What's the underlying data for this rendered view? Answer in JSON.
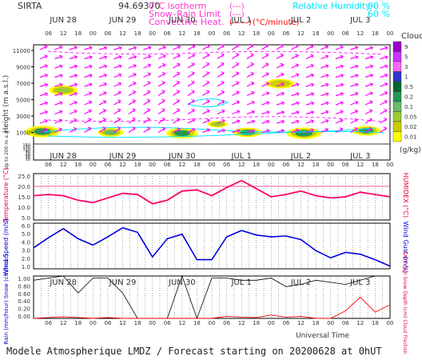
{
  "header": {
    "station": "SIRTA",
    "code": "94.69370",
    "legend_isotherm": "0°C isotherm",
    "legend_snow_rain": "Snow–Rain Limit",
    "legend_convective": "Convective Heat.",
    "legend_dashes_1": "(---)",
    "legend_dashes_2": "(---)",
    "legend_solid": "(——)",
    "legend_units": "(°C/minute)",
    "legend_rh": "Relative Humidity",
    "legend_rh_90": "90 %",
    "legend_rh_60": "60 %"
  },
  "days": [
    "JUN 28",
    "JUN 29",
    "JUN 30",
    "JUL  1",
    "JUL  2",
    "JUL  3"
  ],
  "hour_ticks": [
    "06",
    "12",
    "18",
    "00"
  ],
  "footer": {
    "title": "Modele Atmospherique LMDZ / Forecast starting on 20200628 at 0hUT",
    "xlabel": "Universal Time"
  },
  "colors": {
    "isotherm": "#ff00ff",
    "temperature": "#ff0066",
    "wind": "#0000dd",
    "rain": "#ff0000",
    "snow": "#0000ff",
    "cape": "#000000",
    "rh": "#00e5ff"
  },
  "chart_data": [
    {
      "type": "heatmap",
      "name": "cloud-height-panel",
      "ylabel": "Height (m a.s.l.)",
      "ylabel_low": "Up to 200 m a.g.l.",
      "yticks_upper": [
        "11000",
        "9000",
        "7000",
        "5000",
        "3000",
        "1000"
      ],
      "yticks_lower": [
        "150",
        "130",
        "110",
        "90",
        "70",
        "50",
        "30",
        "10"
      ],
      "colorbar": {
        "title": "Clouds",
        "unit": "(g/kg)",
        "labels": [
          "9",
          "5",
          "3",
          "1",
          "0.5",
          "0.2",
          "0.1",
          "0.05",
          "0.02",
          "0.01"
        ],
        "colors": [
          "#9900cc",
          "#cc33ff",
          "#ff66ff",
          "#3333cc",
          "#006633",
          "#229955",
          "#66bb66",
          "#99cc33",
          "#cccc00",
          "#ffff00"
        ]
      },
      "cloud_blobs": [
        {
          "t": 0.5,
          "z": 6500,
          "size": 1.0,
          "level": 3
        },
        {
          "t": 0.15,
          "z": 1500,
          "size": 1.2,
          "level": 5
        },
        {
          "t": 1.3,
          "z": 1400,
          "size": 0.9,
          "level": 4
        },
        {
          "t": 2.5,
          "z": 1300,
          "size": 1.1,
          "level": 5
        },
        {
          "t": 3.1,
          "z": 2400,
          "size": 0.7,
          "level": 3
        },
        {
          "t": 3.6,
          "z": 1400,
          "size": 1.0,
          "level": 5
        },
        {
          "t": 4.15,
          "z": 7300,
          "size": 1.0,
          "level": 2
        },
        {
          "t": 4.55,
          "z": 1300,
          "size": 1.2,
          "level": 5
        },
        {
          "t": 5.6,
          "z": 1600,
          "size": 1.0,
          "level": 5
        }
      ]
    },
    {
      "type": "line",
      "name": "temperature",
      "ylabel": "Temperature (°C)",
      "ylabel_right": "HUMIDEX (°C)",
      "yticks": [
        "25.0",
        "20.0",
        "15.0",
        "10.0",
        "5.0"
      ],
      "ylim": [
        5,
        25
      ],
      "x": [
        0,
        0.25,
        0.5,
        0.75,
        1.0,
        1.25,
        1.5,
        1.75,
        2.0,
        2.25,
        2.5,
        2.75,
        3.0,
        3.25,
        3.5,
        3.75,
        4.0,
        4.25,
        4.5,
        4.75,
        5.0,
        5.25,
        5.5,
        5.75,
        6.0
      ],
      "values": [
        15.5,
        16.0,
        15.5,
        13.5,
        12.5,
        14.5,
        16.5,
        16.0,
        12.0,
        13.5,
        17.5,
        18.0,
        15.5,
        19.0,
        22.0,
        18.5,
        15.0,
        16.0,
        17.5,
        15.5,
        14.5,
        15.0,
        17.0,
        16.0,
        15.0
      ],
      "reference_line": 19.5
    },
    {
      "type": "line",
      "name": "wind-speed",
      "ylabel": "Wind Speed (m/s)",
      "ylabel_right": "Wind Gust (m/s)",
      "yticks": [
        "6.0",
        "5.0",
        "4.0",
        "3.0",
        "2.0",
        "1.0"
      ],
      "ylim": [
        1,
        6
      ],
      "x": [
        0,
        0.25,
        0.5,
        0.75,
        1.0,
        1.25,
        1.5,
        1.75,
        2.0,
        2.25,
        2.5,
        2.75,
        3.0,
        3.25,
        3.5,
        3.75,
        4.0,
        4.25,
        4.5,
        4.75,
        5.0,
        5.25,
        5.5,
        5.75,
        6.0
      ],
      "values": [
        3.3,
        4.4,
        5.4,
        4.3,
        3.6,
        4.5,
        5.5,
        5.0,
        2.3,
        4.3,
        4.8,
        2.0,
        2.0,
        4.5,
        5.2,
        4.7,
        4.5,
        4.6,
        4.2,
        3.0,
        2.2,
        2.8,
        2.6,
        2.0,
        1.3
      ]
    },
    {
      "type": "line",
      "name": "precipitation",
      "ylabel": "Rain (mm/hour) Snow (cm/hour)",
      "ylabel_right": "CAPE (J/g) Snow Depth (cm) Cloud Fraction",
      "yticks": [
        "1.00",
        "0.80",
        "0.60",
        "0.40",
        "0.20",
        "0.00"
      ],
      "ylim": [
        0,
        1
      ],
      "x": [
        0,
        0.25,
        0.5,
        0.75,
        1.0,
        1.25,
        1.5,
        1.75,
        2.0,
        2.25,
        2.5,
        2.75,
        3.0,
        3.25,
        3.5,
        3.75,
        4.0,
        4.25,
        4.5,
        4.75,
        5.0,
        5.25,
        5.5,
        5.75,
        6.0
      ],
      "rain": [
        0.0,
        0.02,
        0.04,
        0.02,
        0.0,
        0.02,
        0.0,
        0.0,
        0.0,
        0.0,
        0.0,
        0.0,
        0.0,
        0.05,
        0.03,
        0.02,
        0.08,
        0.03,
        0.05,
        0.0,
        0.0,
        0.18,
        0.5,
        0.15,
        0.32
      ],
      "cloud_fraction": [
        0.9,
        0.95,
        1.0,
        0.6,
        0.95,
        0.95,
        0.6,
        0.0,
        0.0,
        0.0,
        1.0,
        0.0,
        0.95,
        0.95,
        0.9,
        0.9,
        0.95,
        0.75,
        0.8,
        0.9,
        0.85,
        0.8,
        0.9,
        1.0,
        1.0
      ]
    }
  ]
}
